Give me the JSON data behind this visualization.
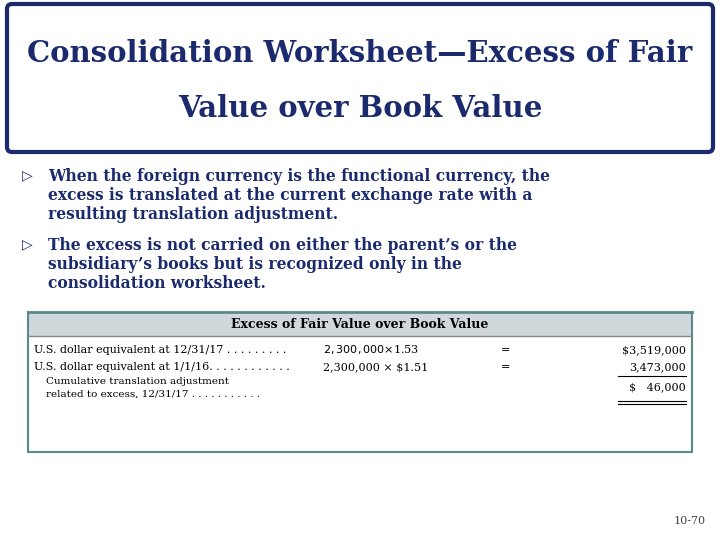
{
  "title_line1": "Consolidation Worksheet—Excess of Fair",
  "title_line2": "Value over Book Value",
  "bullet1_line1": "When the foreign currency is the functional currency, the",
  "bullet1_line2": "excess is translated at the current exchange rate with a",
  "bullet1_line3": "resulting translation adjustment.",
  "bullet2_line1": "The excess is not carried on either the parent’s or the",
  "bullet2_line2": "subsidiary’s books but is recognized only in the",
  "bullet2_line3": "consolidation worksheet.",
  "table_header": "Excess of Fair Value over Book Value",
  "row0_label": "U.S. dollar equivalent at 12/31/17 . . . . . . . . .",
  "row0_calc": "$2,300,000 × $1.53",
  "row0_eq": "=",
  "row0_result": "$3,519,000",
  "row1_label": "U.S. dollar equivalent at 1/1/16. . . . . . . . . . . .",
  "row1_calc": "2,300,000 × $1.51",
  "row1_eq": "=",
  "row1_result": "3,473,000",
  "row2_label1": "Cumulative translation adjustment",
  "row2_label2": "related to excess, 12/31/17 . . . . . . . . . . .",
  "row2_result": "$   46,000",
  "page_number": "10-70",
  "bg_color": "#ffffff",
  "title_border_color": "#1a2a6c",
  "title_text_color": "#1a2a6c",
  "body_text_color": "#1a2a6c",
  "table_top_border_color": "#5a8a8a",
  "table_inner_border_color": "#888888",
  "table_header_bg": "#d0d8dc"
}
